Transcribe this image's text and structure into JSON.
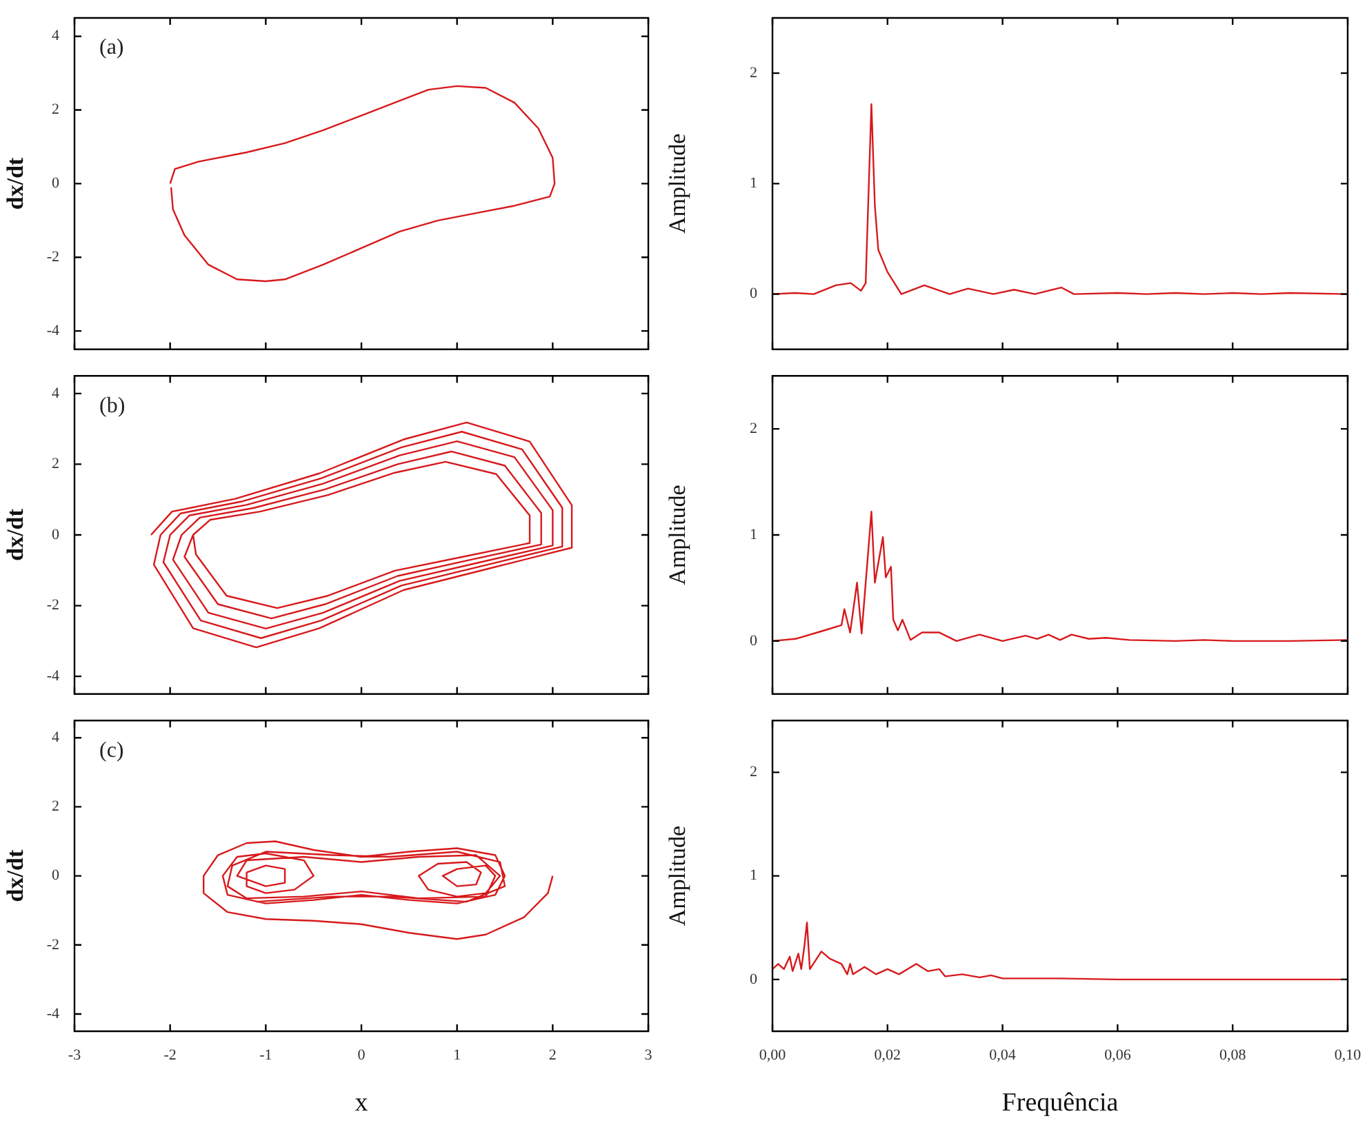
{
  "chart_data": [
    {
      "type": "line",
      "ylabel": "dx/dt",
      "annotations": [
        "(a)"
      ],
      "xlim": [
        -3,
        3
      ],
      "xticks": [
        -3,
        -2,
        -1,
        0,
        1,
        2,
        3
      ],
      "ylim": [
        -4.5,
        4.5
      ],
      "yticks": [
        -4,
        -2,
        0,
        2,
        4
      ],
      "tick_labels": "y",
      "series": [
        {
          "color": "#d7191c",
          "x": [
            -2,
            -1.95,
            -1.7,
            -1.2,
            -0.8,
            -0.4,
            0,
            0.4,
            0.7,
            1,
            1.3,
            1.6,
            1.85,
            2,
            2.02,
            1.97,
            1.6,
            1.2,
            0.8,
            0.4,
            0,
            -0.4,
            -0.8,
            -1,
            -1.3,
            -1.6,
            -1.85,
            -1.97,
            -1.99
          ],
          "values": [
            0,
            0.4,
            0.6,
            0.85,
            1.1,
            1.45,
            1.85,
            2.25,
            2.55,
            2.65,
            2.6,
            2.2,
            1.5,
            0.7,
            0,
            -0.35,
            -0.6,
            -0.8,
            -1,
            -1.3,
            -1.75,
            -2.2,
            -2.6,
            -2.65,
            -2.6,
            -2.2,
            -1.4,
            -0.7,
            -0.1
          ]
        }
      ]
    },
    {
      "type": "line",
      "ylabel": "Amplitude",
      "xlim": [
        0,
        0.1
      ],
      "xticks": [
        0,
        0.02,
        0.04,
        0.06,
        0.08,
        0.1
      ],
      "ylim": [
        -0.5,
        2.5
      ],
      "yticks": [
        0,
        1,
        2
      ],
      "tick_labels": "y",
      "series": [
        {
          "color": "#d7191c",
          "x": [
            0,
            0.004,
            0.0072,
            0.011,
            0.0136,
            0.0154,
            0.0162,
            0.0172,
            0.0178,
            0.0184,
            0.02,
            0.0224,
            0.0264,
            0.0308,
            0.034,
            0.0384,
            0.042,
            0.0456,
            0.0502,
            0.0524,
            0.06,
            0.065,
            0.07,
            0.075,
            0.08,
            0.085,
            0.09,
            0.1
          ],
          "values": [
            0,
            0.01,
            0,
            0.08,
            0.1,
            0.03,
            0.1,
            1.72,
            0.8,
            0.4,
            0.2,
            0,
            0.08,
            0,
            0.05,
            0,
            0.04,
            0,
            0.06,
            0,
            0.01,
            0,
            0.01,
            0,
            0.01,
            0,
            0.01,
            0
          ]
        }
      ]
    },
    {
      "type": "line",
      "ylabel": "dx/dt",
      "annotations": [
        "(b)"
      ],
      "xlim": [
        -3,
        3
      ],
      "xticks": [
        -3,
        -2,
        -1,
        0,
        1,
        2,
        3
      ],
      "ylim": [
        -4.5,
        4.5
      ],
      "yticks": [
        -4,
        -2,
        0,
        2,
        4
      ],
      "tick_labels": "y",
      "series": [
        {
          "color": "#d7191c",
          "x": [
            -2.2,
            -1.98,
            -1.32,
            -0.44,
            0.44,
            1.1,
            1.76,
            2.2,
            2.2,
            1.32,
            0.44,
            -0.44,
            -1.1,
            -1.76,
            -2.17,
            -2.1,
            -1.89,
            -1.26,
            -0.42,
            0.42,
            1.05,
            1.68,
            2.1,
            2.1,
            1.26,
            0.42,
            -0.42,
            -1.05,
            -1.68,
            -2.07,
            -2,
            -1.8,
            -1.2,
            -0.4,
            0.4,
            1,
            1.6,
            2,
            2,
            1.2,
            0.4,
            -0.4,
            -1,
            -1.6,
            -1.97,
            -1.88,
            -1.69,
            -1.13,
            -0.38,
            0.38,
            0.94,
            1.5,
            1.88,
            1.88,
            1.13,
            0.38,
            -0.38,
            -0.94,
            -1.5,
            -1.85,
            -1.76,
            -1.58,
            -1.06,
            -0.35,
            0.35,
            0.88,
            1.41,
            1.76,
            1.76,
            1.06,
            0.35,
            -0.35,
            -0.88,
            -1.41,
            -1.73,
            -1.76
          ],
          "values": [
            0,
            0.66,
            1.02,
            1.74,
            2.7,
            3.18,
            2.64,
            0.84,
            -0.36,
            -0.96,
            -1.56,
            -2.64,
            -3.18,
            -2.64,
            -0.84,
            0,
            0.61,
            0.94,
            1.6,
            2.48,
            2.92,
            2.42,
            0.77,
            -0.33,
            -0.88,
            -1.43,
            -2.42,
            -2.92,
            -2.42,
            -0.77,
            0,
            0.55,
            0.85,
            1.45,
            2.25,
            2.65,
            2.2,
            0.7,
            -0.3,
            -0.8,
            -1.3,
            -2.2,
            -2.65,
            -2.2,
            -0.7,
            0,
            0.49,
            0.76,
            1.29,
            2,
            2.36,
            1.96,
            0.62,
            -0.27,
            -0.71,
            -1.16,
            -1.96,
            -2.36,
            -1.96,
            -0.62,
            0,
            0.43,
            0.66,
            1.13,
            1.76,
            2.07,
            1.72,
            0.55,
            -0.23,
            -0.62,
            -1.01,
            -1.72,
            -2.07,
            -1.72,
            -0.55,
            0
          ]
        }
      ]
    },
    {
      "type": "line",
      "ylabel": "Amplitude",
      "xlim": [
        0,
        0.1
      ],
      "xticks": [
        0,
        0.02,
        0.04,
        0.06,
        0.08,
        0.1
      ],
      "ylim": [
        -0.5,
        2.5
      ],
      "yticks": [
        0,
        1,
        2
      ],
      "tick_labels": "y",
      "series": [
        {
          "color": "#d7191c",
          "x": [
            0,
            0.004,
            0.009,
            0.012,
            0.0125,
            0.0135,
            0.0147,
            0.0155,
            0.0172,
            0.0178,
            0.0192,
            0.0197,
            0.0206,
            0.021,
            0.0218,
            0.0226,
            0.024,
            0.026,
            0.029,
            0.032,
            0.036,
            0.04,
            0.044,
            0.046,
            0.048,
            0.05,
            0.052,
            0.055,
            0.058,
            0.062,
            0.07,
            0.075,
            0.08,
            0.09,
            0.1
          ],
          "values": [
            0,
            0.02,
            0.1,
            0.15,
            0.3,
            0.08,
            0.55,
            0.07,
            1.22,
            0.55,
            0.98,
            0.6,
            0.7,
            0.2,
            0.1,
            0.2,
            0.01,
            0.08,
            0.08,
            0,
            0.06,
            0,
            0.05,
            0.02,
            0.06,
            0.01,
            0.06,
            0.02,
            0.03,
            0.01,
            0,
            0.01,
            0,
            0,
            0.01
          ]
        }
      ]
    },
    {
      "type": "line",
      "xlabel": "x",
      "ylabel": "dx/dt",
      "annotations": [
        "(c)"
      ],
      "xlim": [
        -3,
        3
      ],
      "xticks": [
        -3,
        -2,
        -1,
        0,
        1,
        2,
        3
      ],
      "ylim": [
        -4.5,
        4.5
      ],
      "yticks": [
        -4,
        -2,
        0,
        2,
        4
      ],
      "series": [
        {
          "color": "#d7191c",
          "x": [
            2,
            1.95,
            1.7,
            1.3,
            1,
            0.5,
            0,
            -0.5,
            -1,
            -1.4,
            -1.65,
            -1.65,
            -1.5,
            -1.2,
            -0.9,
            -0.5,
            0,
            0.5,
            1,
            1.4,
            1.5,
            1.4,
            1,
            0.5,
            0,
            -0.5,
            -1,
            -1.4,
            -1.45,
            -1.3,
            -1,
            -0.6,
            -0.5,
            -0.7,
            -1,
            -1.2,
            -1.2,
            -1,
            -0.8,
            -0.8,
            -1,
            -1.3,
            -1.2,
            -0.6,
            0,
            0.6,
            1.2,
            1.45,
            1.3,
            1,
            0.7,
            0.6,
            0.8,
            1.1,
            1.25,
            1.2,
            1,
            0.85,
            1,
            1.3,
            1.4,
            1.3,
            0.6,
            0,
            -0.6,
            -1.2,
            -1.4,
            -1.35,
            -1,
            -0.3,
            0.3,
            1,
            1.45,
            1.5,
            1.1,
            0.3,
            -0.3,
            -1.1
          ],
          "values": [
            0,
            -0.5,
            -1.2,
            -1.7,
            -1.83,
            -1.65,
            -1.4,
            -1.3,
            -1.25,
            -1.05,
            -0.5,
            0,
            0.6,
            0.95,
            1,
            0.75,
            0.55,
            0.7,
            0.8,
            0.6,
            0,
            -0.55,
            -0.8,
            -0.7,
            -0.55,
            -0.7,
            -0.8,
            -0.55,
            0,
            0.55,
            0.65,
            0.45,
            0,
            -0.4,
            -0.5,
            -0.3,
            0.1,
            0.3,
            0.2,
            -0.2,
            -0.3,
            0,
            0.45,
            0.55,
            0.4,
            0.55,
            0.6,
            0,
            -0.5,
            -0.6,
            -0.4,
            0,
            0.35,
            0.4,
            0.1,
            -0.25,
            -0.3,
            0,
            0.2,
            0.3,
            0,
            -0.6,
            -0.65,
            -0.45,
            -0.6,
            -0.65,
            -0.3,
            0.3,
            0.7,
            0.6,
            0.55,
            0.7,
            0.4,
            -0.3,
            -0.75,
            -0.6,
            -0.6,
            -0.75
          ]
        }
      ]
    },
    {
      "type": "line",
      "xlabel": "Frequência",
      "ylabel": "Amplitude",
      "xlim": [
        0,
        0.1
      ],
      "xticks": [
        {
          "value": 0,
          "label": "0,00"
        },
        {
          "value": 0.02,
          "label": "0,02"
        },
        {
          "value": 0.04,
          "label": "0,04"
        },
        {
          "value": 0.06,
          "label": "0,06"
        },
        {
          "value": 0.08,
          "label": "0,08"
        },
        {
          "value": 0.1,
          "label": "0,10"
        }
      ],
      "ylim": [
        -0.5,
        2.5
      ],
      "yticks": [
        0,
        1,
        2
      ],
      "series": [
        {
          "color": "#d7191c",
          "x": [
            0,
            0.001,
            0.002,
            0.003,
            0.0035,
            0.0045,
            0.005,
            0.0055,
            0.006,
            0.0065,
            0.0085,
            0.01,
            0.012,
            0.013,
            0.0135,
            0.014,
            0.016,
            0.018,
            0.02,
            0.022,
            0.025,
            0.027,
            0.029,
            0.03,
            0.033,
            0.036,
            0.038,
            0.04,
            0.05,
            0.06,
            0.08,
            0.1
          ],
          "values": [
            0.1,
            0.15,
            0.1,
            0.22,
            0.08,
            0.25,
            0.1,
            0.3,
            0.55,
            0.1,
            0.27,
            0.2,
            0.15,
            0.05,
            0.15,
            0.05,
            0.12,
            0.05,
            0.1,
            0.05,
            0.15,
            0.08,
            0.1,
            0.03,
            0.05,
            0.02,
            0.04,
            0.01,
            0.01,
            0,
            0,
            0
          ]
        }
      ]
    }
  ]
}
